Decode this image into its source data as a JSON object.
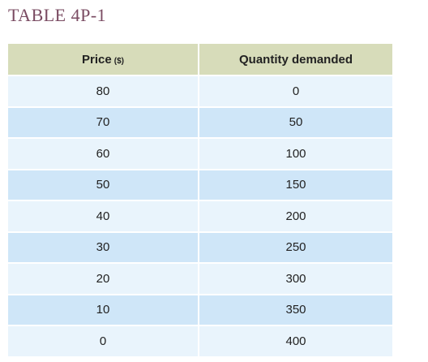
{
  "title": "TABLE 4P-1",
  "table": {
    "headers": {
      "price": "Price",
      "price_unit": "($)",
      "quantity": "Quantity demanded"
    },
    "rows": [
      {
        "price": "80",
        "quantity": "0"
      },
      {
        "price": "70",
        "quantity": "50"
      },
      {
        "price": "60",
        "quantity": "100"
      },
      {
        "price": "50",
        "quantity": "150"
      },
      {
        "price": "40",
        "quantity": "200"
      },
      {
        "price": "30",
        "quantity": "250"
      },
      {
        "price": "20",
        "quantity": "300"
      },
      {
        "price": "10",
        "quantity": "350"
      },
      {
        "price": "0",
        "quantity": "400"
      }
    ]
  },
  "colors": {
    "title": "#7a4b62",
    "header_bg": "#d7dcba",
    "row_light": "#e9f4fc",
    "row_dark": "#cfe6f8"
  }
}
